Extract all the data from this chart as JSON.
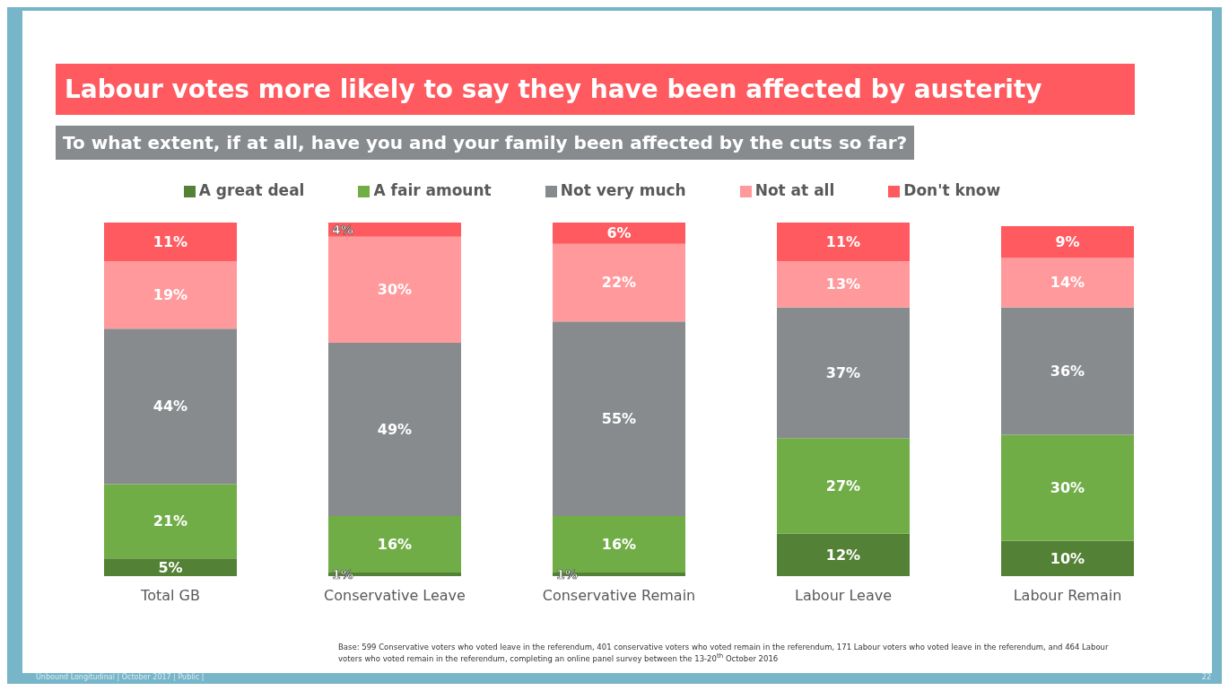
{
  "chart_data": {
    "type": "bar",
    "title": "Labour votes more likely to say they have been affected by austerity",
    "subtitle": "To what extent, if at all, have you and your family been affected by the cuts so far?",
    "categories": [
      "Total GB",
      "Conservative Leave",
      "Conservative Remain",
      "Labour Leave",
      "Labour Remain"
    ],
    "stacked": true,
    "ylim": [
      0,
      100
    ],
    "legend": "top",
    "grid": false,
    "series": [
      {
        "name": "A great deal",
        "color": "#538135",
        "values": [
          5,
          1,
          1,
          12,
          10
        ],
        "value_labels": [
          "5%",
          "1%",
          "1%",
          "12%",
          "10%"
        ]
      },
      {
        "name": "A fair amount",
        "color": "#70ad47",
        "values": [
          21,
          16,
          16,
          27,
          30
        ],
        "value_labels": [
          "21%",
          "16%",
          "16%",
          "27%",
          "30%"
        ]
      },
      {
        "name": "Not very much",
        "color": "#888b8d",
        "values": [
          44,
          49,
          55,
          37,
          36
        ],
        "value_labels": [
          "44%",
          "49%",
          "55%",
          "37%",
          "36%"
        ]
      },
      {
        "name": "Not at all",
        "color": "#ff999b",
        "values": [
          19,
          30,
          22,
          13,
          14
        ],
        "value_labels": [
          "19%",
          "30%",
          "22%",
          "13%",
          "14%"
        ]
      },
      {
        "name": "Don't know",
        "color": "#ff5a5f",
        "values": [
          11,
          4,
          6,
          11,
          9
        ],
        "value_labels": [
          "11%",
          "4%",
          "6%",
          "11%",
          "9%"
        ]
      }
    ],
    "annotations": [
      "Base: 599 Conservative voters who voted leave in the referendum, 401 conservative voters who voted remain in the referendum, 171 Labour voters who voted leave in the referendum, and 464 Labour voters who voted remain in the referendum, completing an online panel survey between the 13-20$^{th}$ October 2016",
      "Unbound Longitudinal | October 2017 | Public |",
      "22"
    ]
  }
}
